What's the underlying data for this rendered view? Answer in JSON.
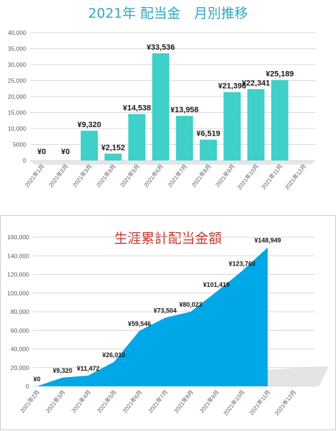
{
  "chart_data": [
    {
      "type": "bar",
      "title": "2021年 配当金　月別推移",
      "categories": [
        "2021年1月",
        "2021年2月",
        "2021年3月",
        "2021年4月",
        "2021年5月",
        "2021年6月",
        "2021年7月",
        "2021年8月",
        "2021年9月",
        "2021年10月",
        "2021年11月",
        "2021年12月"
      ],
      "values": [
        0,
        0,
        9320,
        2152,
        14538,
        33536,
        13958,
        6519,
        21396,
        22341,
        25189,
        null
      ],
      "data_labels": [
        "¥0",
        "¥0",
        "¥9,320",
        "¥2,152",
        "¥14,538",
        "¥33,536",
        "¥13,958",
        "¥6,519",
        "¥21,396",
        "¥22,341",
        "¥25,189",
        ""
      ],
      "ylim": [
        0,
        40000
      ],
      "yticks": [
        "0",
        "5000",
        "10,000",
        "15,000",
        "20,000",
        "25,000",
        "30,000",
        "35,000",
        "40,000"
      ],
      "grid": true,
      "color": "#3fd0c9"
    },
    {
      "type": "area",
      "title": "生涯累計配当金額",
      "categories": [
        "2021年2月",
        "2021年3月",
        "2021年4月",
        "2021年5月",
        "2021年6月",
        "2021年7月",
        "2021年8月",
        "2021年9月",
        "2021年10月",
        "2021年11月",
        "2021年12月"
      ],
      "values": [
        0,
        9320,
        11472,
        26010,
        59546,
        73504,
        80023,
        101419,
        123760,
        148949,
        null
      ],
      "data_labels": [
        "¥0",
        "¥9,320",
        "¥11,472",
        "¥26,010",
        "¥59,546",
        "¥73,504",
        "¥80,023",
        "¥101,419",
        "¥123,760",
        "¥148,949",
        ""
      ],
      "ylim": [
        0,
        160000
      ],
      "yticks": [
        "0",
        "20,000",
        "40,000",
        "60,000",
        "80,000",
        "100,000",
        "120,000",
        "140,000",
        "160,000"
      ],
      "grid": true,
      "color": "#00a8e8"
    }
  ]
}
